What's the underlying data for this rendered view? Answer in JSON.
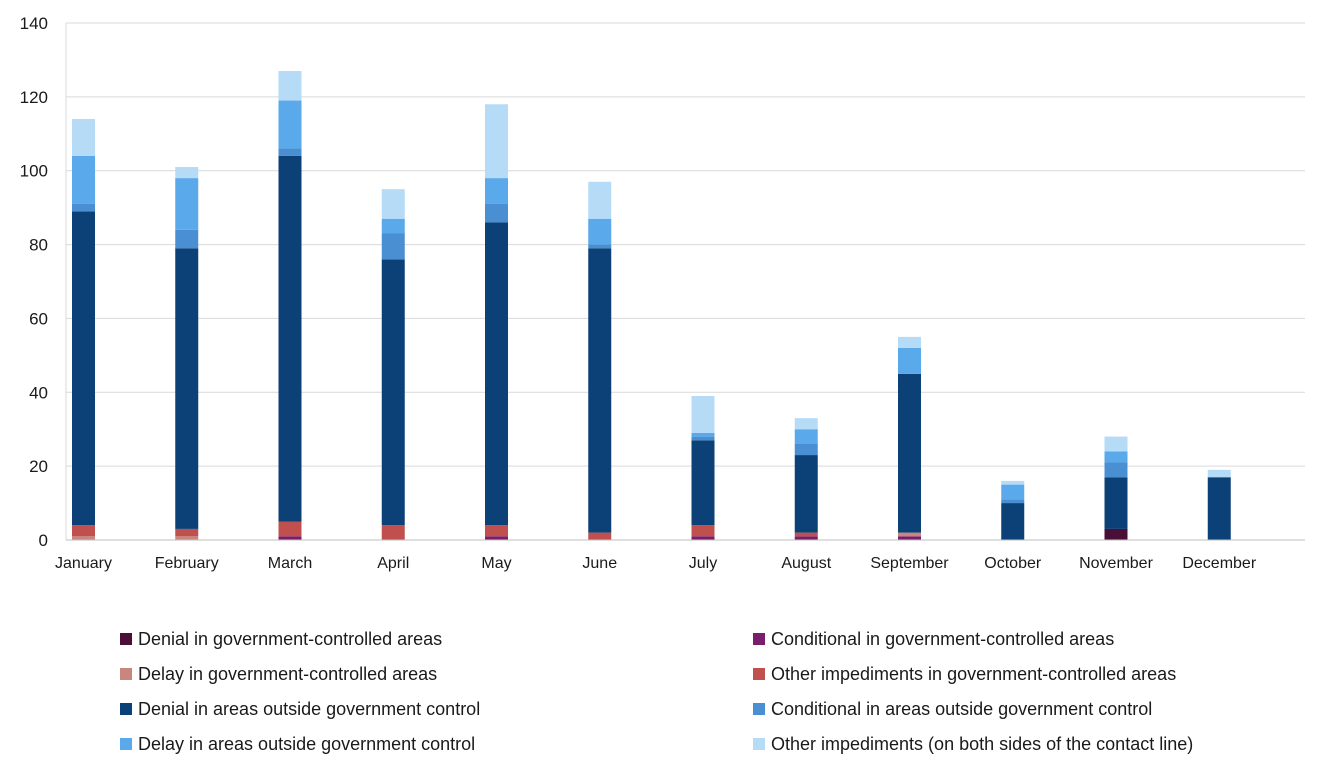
{
  "chart_data": {
    "type": "bar",
    "stacked": true,
    "categories": [
      "January",
      "February",
      "March",
      "April",
      "May",
      "June",
      "July",
      "August",
      "September",
      "October",
      "November",
      "December"
    ],
    "ylim": [
      0,
      140
    ],
    "yticks": [
      0,
      20,
      40,
      60,
      80,
      100,
      120,
      140
    ],
    "grid": true,
    "legend_position": "bottom",
    "series": [
      {
        "name": "Denial in government-controlled areas",
        "color": "#4a0f37",
        "values": [
          0,
          0,
          0,
          0,
          0,
          0,
          0,
          0,
          0,
          0,
          3,
          0
        ]
      },
      {
        "name": "Conditional in government-controlled areas",
        "color": "#7b1d6a",
        "values": [
          0,
          0,
          1,
          0,
          1,
          0,
          1,
          1,
          1,
          0,
          0,
          0
        ]
      },
      {
        "name": "Delay in government-controlled areas",
        "color": "#c8877e",
        "values": [
          1,
          1,
          0,
          0,
          0,
          0,
          0,
          0,
          1,
          0,
          0,
          0
        ]
      },
      {
        "name": "Other impediments in government-controlled areas",
        "color": "#c0504d",
        "values": [
          3,
          2,
          4,
          4,
          3,
          2,
          3,
          1,
          0,
          0,
          0,
          0
        ]
      },
      {
        "name": "Denial in areas outside government control",
        "color": "#0b4177",
        "values": [
          85,
          76,
          99,
          72,
          82,
          77,
          23,
          21,
          43,
          10,
          14,
          17
        ]
      },
      {
        "name": "Conditional in areas outside government control",
        "color": "#4a8fd1",
        "values": [
          2,
          5,
          2,
          7,
          5,
          1,
          1,
          3,
          0,
          1,
          4,
          0
        ]
      },
      {
        "name": "Delay in areas outside government control",
        "color": "#5aa9ea",
        "values": [
          13,
          14,
          13,
          4,
          7,
          7,
          1,
          4,
          7,
          4,
          3,
          0
        ]
      },
      {
        "name": "Other impediments (on both sides of the contact line)",
        "color": "#b5dbf7",
        "values": [
          10,
          3,
          8,
          8,
          20,
          10,
          10,
          3,
          3,
          1,
          4,
          2
        ]
      }
    ]
  }
}
